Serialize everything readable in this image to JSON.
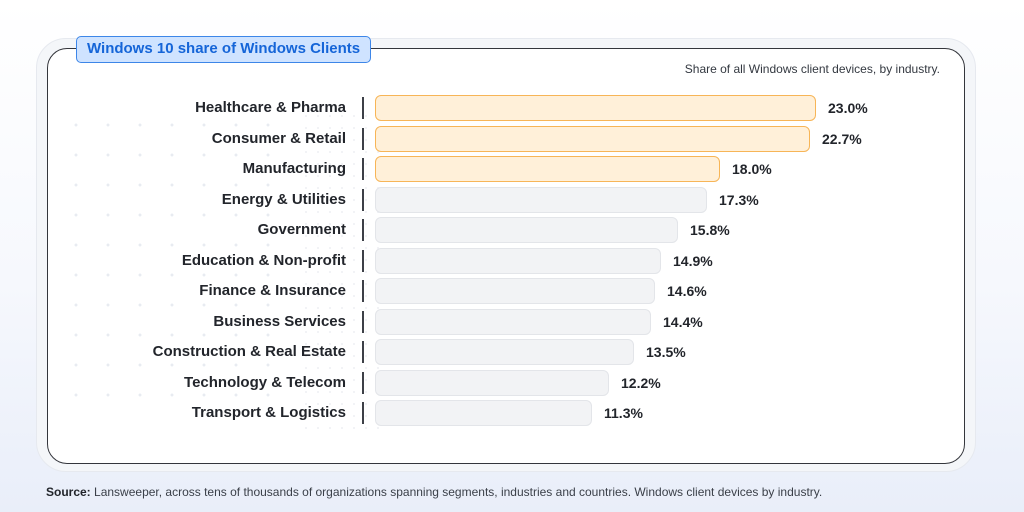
{
  "title": "Windows 10 share of Windows Clients",
  "subtitle": "Share of all Windows client devices, by industry.",
  "source": {
    "label": "Source:",
    "text": "Lansweeper, across tens of thousands of organizations spanning segments, industries and countries. Windows client devices by industry."
  },
  "colors": {
    "highlight_fill": "#fff0d9",
    "highlight_border": "#f7b557",
    "bar_fill": "#f2f3f5",
    "title_badge_fill": "#cfe3ff",
    "title_text": "#1565d8"
  },
  "chart_data": {
    "type": "bar",
    "orientation": "horizontal",
    "categories": [
      "Healthcare & Pharma",
      "Consumer & Retail",
      "Manufacturing",
      "Energy & Utilities",
      "Government",
      "Education & Non-profit",
      "Finance & Insurance",
      "Business Services",
      "Construction & Real Estate",
      "Technology & Telecom",
      "Transport & Logistics"
    ],
    "values": [
      23.0,
      22.7,
      18.0,
      17.3,
      15.8,
      14.9,
      14.6,
      14.4,
      13.5,
      12.2,
      11.3
    ],
    "value_labels": [
      "23.0%",
      "22.7%",
      "18.0%",
      "17.3%",
      "15.8%",
      "14.9%",
      "14.6%",
      "14.4%",
      "13.5%",
      "12.2%",
      "11.3%"
    ],
    "highlighted": [
      true,
      true,
      true,
      false,
      false,
      false,
      false,
      false,
      false,
      false,
      false
    ],
    "unit": "%",
    "xlim": [
      0,
      23.0
    ],
    "grid": false
  }
}
